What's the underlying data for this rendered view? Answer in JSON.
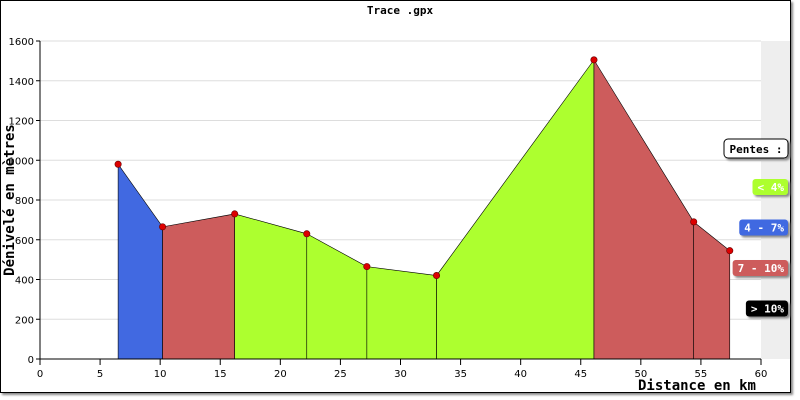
{
  "chart_data": {
    "type": "area",
    "title": "Trace .gpx",
    "x_label": "Distance en km",
    "y_label": "Dénivelé en mètres",
    "x": [
      6.5,
      10.2,
      16.2,
      22.2,
      27.2,
      33,
      46.1,
      54.4,
      57.4
    ],
    "values": [
      980,
      665,
      730,
      630,
      465,
      420,
      1505,
      690,
      545
    ],
    "segment_colors": [
      "#4169e1",
      "#cd5c5c",
      "#adff2f",
      "#adff2f",
      "#adff2f",
      "#adff2f",
      "#cd5c5c",
      "#cd5c5c"
    ],
    "marker_color": "#dd0000",
    "xlim": [
      0,
      60
    ],
    "xticks": [
      0,
      5,
      10,
      15,
      20,
      25,
      30,
      35,
      40,
      45,
      50,
      55,
      60
    ],
    "ylim": [
      0,
      1600
    ],
    "yticks": [
      0,
      200,
      400,
      600,
      800,
      1000,
      1200,
      1400,
      1600
    ],
    "grid": true,
    "legend": {
      "title": "Pentes :",
      "items": [
        {
          "label": "< 4%",
          "color": "#adff2f"
        },
        {
          "label": "4 - 7%",
          "color": "#4169e1"
        },
        {
          "label": "7 - 10%",
          "color": "#cd5c5c"
        },
        {
          "label": "> 10%",
          "color": "#000000"
        }
      ]
    }
  }
}
